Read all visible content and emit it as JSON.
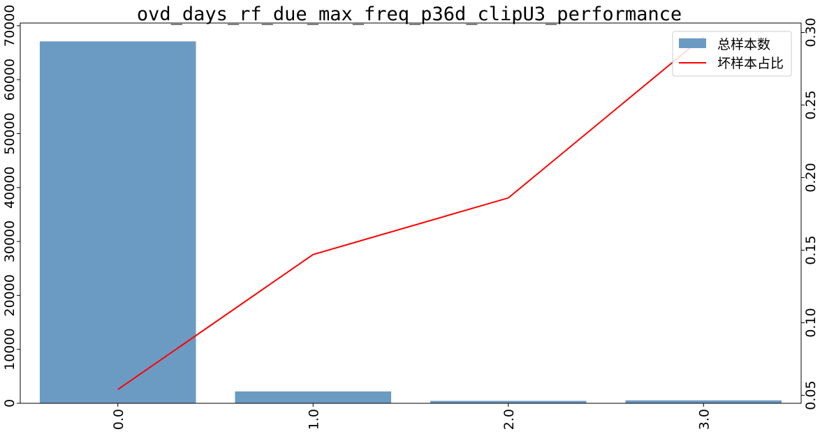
{
  "chart_data": {
    "type": "bar+line",
    "title": "ovd_days_rf_due_max_freq_p36d_clipU3_performance",
    "categories": [
      "0.0",
      "1.0",
      "2.0",
      "3.0"
    ],
    "series": [
      {
        "name": "总样本数",
        "kind": "bar",
        "axis": "left",
        "values": [
          67100,
          2200,
          450,
          550
        ]
      },
      {
        "name": "坏样本占比",
        "kind": "line",
        "axis": "right",
        "values": [
          0.054,
          0.147,
          0.186,
          0.297
        ]
      }
    ],
    "y_left": {
      "ylim": [
        0,
        70500
      ],
      "ticks": [
        0,
        10000,
        20000,
        30000,
        40000,
        50000,
        60000,
        70000
      ]
    },
    "y_right": {
      "ylim": [
        0.0445,
        0.3065
      ],
      "ticks": [
        "0.05",
        "0.10",
        "0.15",
        "0.20",
        "0.25",
        "0.30"
      ]
    },
    "xlabel": "",
    "ylabel": "",
    "grid": false,
    "legend_position": "top-right",
    "colors": {
      "bar": "#6b9bc3",
      "line": "#ff0000"
    }
  }
}
